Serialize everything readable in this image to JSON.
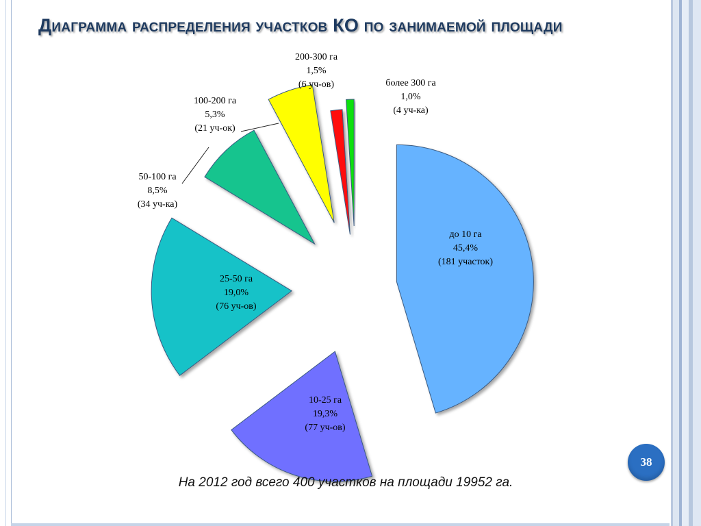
{
  "slide": {
    "title": "Диаграмма распределения участков КО по занимаемой площади",
    "page_number": "38",
    "footnote": "На 2012 год всего 400 участков на площади 19952 га."
  },
  "chart_data": {
    "type": "pie",
    "title": "Диаграмма распределения участков КО по занимаемой площади",
    "slices": [
      {
        "category": "до 10 га",
        "percent": "45,4%",
        "count": "(181 участок)",
        "value": 45.4,
        "color": "#66b3ff"
      },
      {
        "category": "10-25 га",
        "percent": "19,3%",
        "count": "(77 уч-ов)",
        "value": 19.3,
        "color": "#7070ff"
      },
      {
        "category": "25-50 га",
        "percent": "19,0%",
        "count": "(76 уч-ов)",
        "value": 19.0,
        "color": "#12c2c8"
      },
      {
        "category": "50-100 га",
        "percent": "8,5%",
        "count": "(34 уч-ка)",
        "value": 8.5,
        "color": "#12c48e"
      },
      {
        "category": "100-200 га",
        "percent": "5,3%",
        "count": "(21 уч-ок)",
        "value": 5.3,
        "color": "#ffff00"
      },
      {
        "category": "200-300 га",
        "percent": "1,5%",
        "count": "(6 уч-ов)",
        "value": 1.5,
        "color": "#ff1010"
      },
      {
        "category": "более 300 га",
        "percent": "1,0%",
        "count": "(4 уч-ка)",
        "value": 1.0,
        "color": "#10e010"
      }
    ]
  }
}
